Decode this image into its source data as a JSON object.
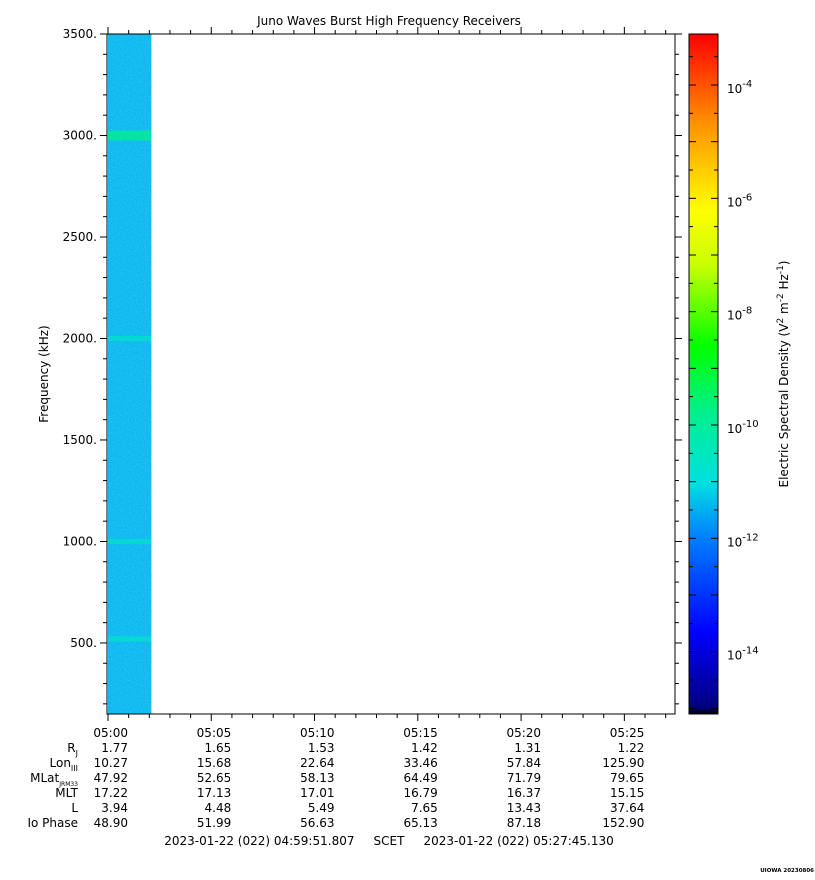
{
  "chart_data": {
    "type": "heatmap",
    "title": "Juno Waves Burst High Frequency Receivers",
    "ylabel": "Frequency (kHz)",
    "ylim": [
      150,
      3500
    ],
    "y_ticks": [
      500,
      1000,
      1500,
      2000,
      2500,
      3000,
      3500
    ],
    "y_tick_labels": [
      "500.",
      "1000.",
      "1500.",
      "2000.",
      "2500.",
      "3000.",
      "3500."
    ],
    "x_tick_labels": [
      "05:00",
      "05:05",
      "05:10",
      "05:15",
      "05:20",
      "05:25"
    ],
    "time_range_minutes": [
      0,
      27.5
    ],
    "data_end_minute": 2.1,
    "features": [
      {
        "frequency_khz": 3000,
        "description": "band"
      },
      {
        "frequency_khz": 2000,
        "description": "band"
      },
      {
        "frequency_khz": 1000,
        "description": "band"
      },
      {
        "frequency_khz": 520,
        "description": "band"
      }
    ],
    "background_level_exp": -11.5,
    "colorbar": {
      "label": "Electric Spectral Density (V² m⁻² Hz⁻¹)",
      "range_exp": [
        -15.1,
        -3.1
      ],
      "ticks": [
        {
          "exp": -4,
          "label": "10",
          "sup": "-4"
        },
        {
          "exp": -6,
          "label": "10",
          "sup": "-6"
        },
        {
          "exp": -8,
          "label": "10",
          "sup": "-8"
        },
        {
          "exp": -10,
          "label": "10",
          "sup": "-10"
        },
        {
          "exp": -12,
          "label": "10",
          "sup": "-12"
        },
        {
          "exp": -14,
          "label": "10",
          "sup": "-14"
        }
      ]
    },
    "ephemeris": {
      "rows": [
        {
          "label": "R",
          "sub": "J",
          "values": [
            "1.77",
            "1.65",
            "1.53",
            "1.42",
            "1.31",
            "1.22"
          ]
        },
        {
          "label": "Lon",
          "sub": "III",
          "values": [
            "10.27",
            "15.68",
            "22.64",
            "33.46",
            "57.84",
            "125.90"
          ]
        },
        {
          "label": "MLat",
          "sub": "JRM33",
          "values": [
            "47.92",
            "52.65",
            "58.13",
            "64.49",
            "71.79",
            "79.65"
          ]
        },
        {
          "label": "MLT",
          "sub": "",
          "values": [
            "17.22",
            "17.13",
            "17.01",
            "16.79",
            "16.37",
            "15.15"
          ]
        },
        {
          "label": "L",
          "sub": "",
          "values": [
            "3.94",
            "4.48",
            "5.49",
            "7.65",
            "13.43",
            "37.64"
          ]
        },
        {
          "label": "Io Phase",
          "sub": "",
          "values": [
            "48.90",
            "51.99",
            "56.63",
            "65.13",
            "87.18",
            "152.90"
          ]
        }
      ]
    },
    "time_range_text": "2023-01-22 (022) 04:59:51.807     SCET     2023-01-22 (022) 05:27:45.130",
    "credit": "UIOWA 20230806"
  }
}
